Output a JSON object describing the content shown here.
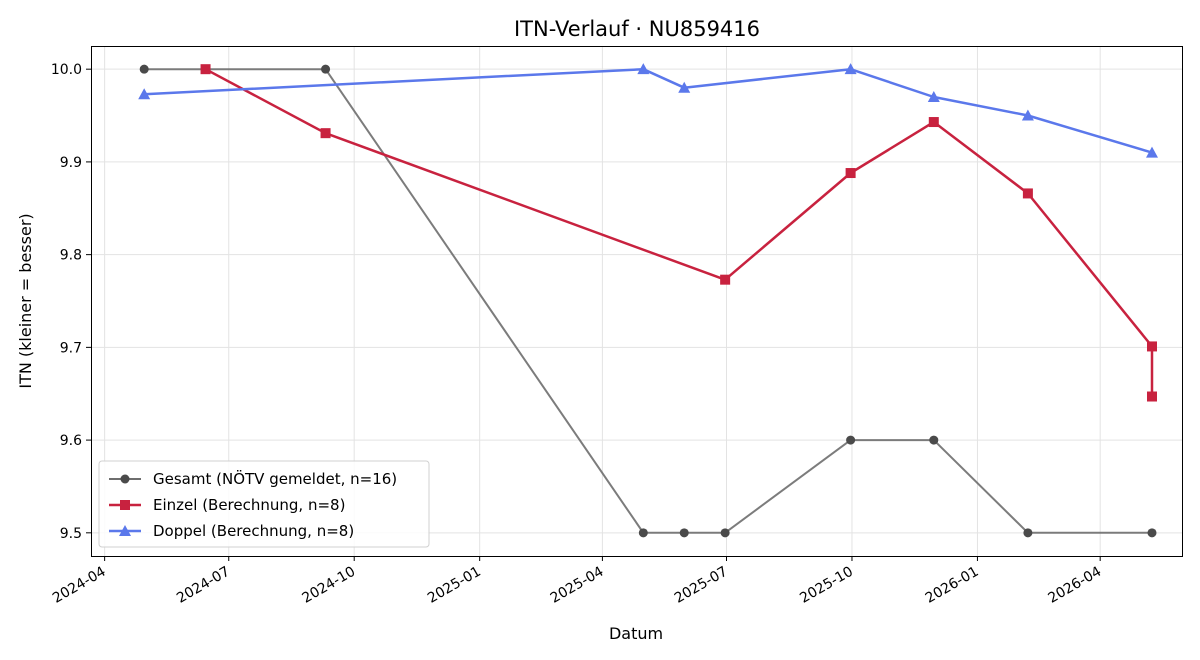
{
  "chart_data": {
    "type": "line",
    "title": "ITN-Verlauf · NU859416",
    "xlabel": "Datum",
    "ylabel": "ITN  (kleiner = besser)",
    "x_ticks": [
      "2024-04",
      "2024-07",
      "2024-10",
      "2025-01",
      "2025-04",
      "2025-07",
      "2025-10",
      "2026-01",
      "2026-04"
    ],
    "y_ticks": [
      "9.5",
      "9.6",
      "9.7",
      "9.8",
      "9.9",
      "10.0"
    ],
    "xlim": [
      "2024-03-22",
      "2026-05-31"
    ],
    "ylim": [
      9.475,
      10.025
    ],
    "grid": true,
    "legend_position": "lower-left",
    "series": [
      {
        "name": "Gesamt (NÖTV gemeldet, n=16)",
        "color": "#6e6e6e",
        "marker": "circle",
        "points": [
          {
            "x": "2024-04-30",
            "y": 10.0
          },
          {
            "x": "2024-09-10",
            "y": 10.0
          },
          {
            "x": "2025-05-01",
            "y": 9.5
          },
          {
            "x": "2025-05-31",
            "y": 9.5
          },
          {
            "x": "2025-06-30",
            "y": 9.5
          },
          {
            "x": "2025-09-30",
            "y": 9.6
          },
          {
            "x": "2025-11-30",
            "y": 9.6
          },
          {
            "x": "2026-02-07",
            "y": 9.5
          },
          {
            "x": "2026-05-09",
            "y": 9.5
          }
        ]
      },
      {
        "name": "Einzel (Berechnung, n=8)",
        "color": "#c8223f",
        "marker": "square",
        "points": [
          {
            "x": "2024-06-14",
            "y": 10.0
          },
          {
            "x": "2024-09-10",
            "y": 9.931
          },
          {
            "x": "2025-06-30",
            "y": 9.773
          },
          {
            "x": "2025-09-30",
            "y": 9.888
          },
          {
            "x": "2025-11-30",
            "y": 9.943
          },
          {
            "x": "2026-02-07",
            "y": 9.866
          },
          {
            "x": "2026-05-09",
            "y": 9.701
          },
          {
            "x": "2026-05-09",
            "y": 9.647
          }
        ]
      },
      {
        "name": "Doppel (Berechnung, n=8)",
        "color": "#5b78eb",
        "marker": "triangle",
        "points": [
          {
            "x": "2024-04-30",
            "y": 9.973
          },
          {
            "x": "2025-05-01",
            "y": 10.0
          },
          {
            "x": "2025-05-31",
            "y": 9.98
          },
          {
            "x": "2025-09-30",
            "y": 10.0
          },
          {
            "x": "2025-11-30",
            "y": 9.97
          },
          {
            "x": "2026-02-07",
            "y": 9.95
          },
          {
            "x": "2026-05-09",
            "y": 9.91
          }
        ]
      }
    ]
  }
}
